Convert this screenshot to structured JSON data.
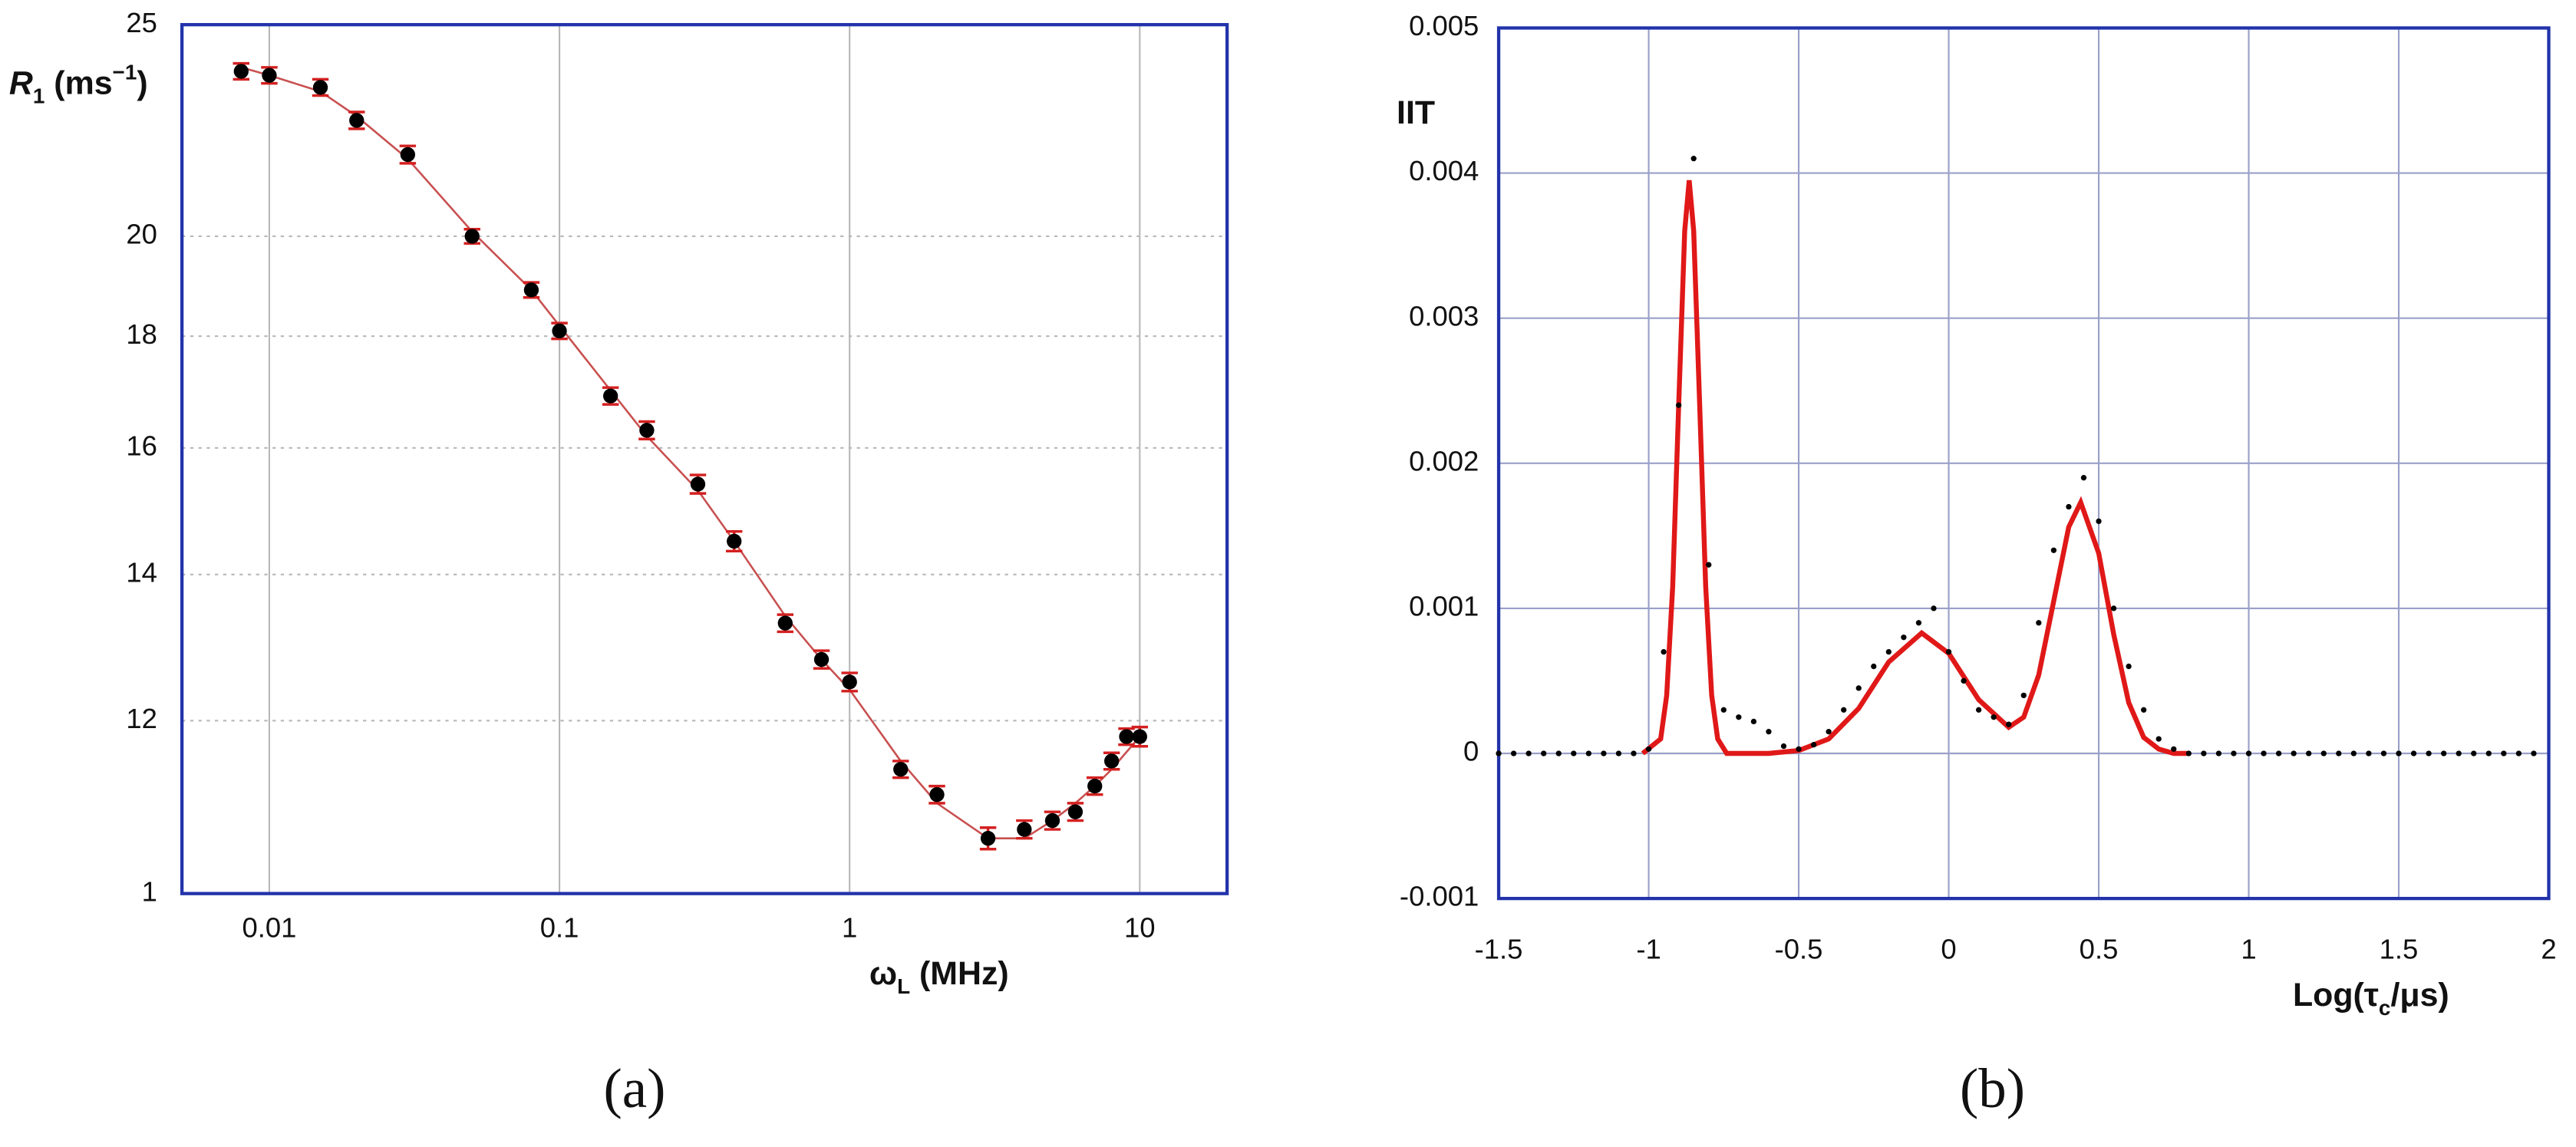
{
  "chart_data": [
    {
      "type": "scatter",
      "x": [
        0.008,
        0.01,
        0.015,
        0.02,
        0.03,
        0.05,
        0.08,
        0.1,
        0.15,
        0.2,
        0.3,
        0.4,
        0.6,
        0.8,
        1,
        1.5,
        2,
        3,
        4,
        5,
        6,
        7,
        8,
        9,
        10
      ],
      "values": [
        23.8,
        23.7,
        23.4,
        22.6,
        21.8,
        20.0,
        18.9,
        18.1,
        16.9,
        16.3,
        15.4,
        14.5,
        13.3,
        12.8,
        12.5,
        11.4,
        11.1,
        10.6,
        10.7,
        10.8,
        10.9,
        11.2,
        11.5,
        11.8,
        11.8
      ],
      "errors": [
        0.2,
        0.2,
        0.2,
        0.2,
        0.2,
        0.15,
        0.15,
        0.15,
        0.15,
        0.15,
        0.15,
        0.15,
        0.12,
        0.12,
        0.12,
        0.1,
        0.1,
        0.12,
        0.1,
        0.1,
        0.1,
        0.1,
        0.1,
        0.1,
        0.12
      ],
      "color": "#000000",
      "error_color": "#d42020",
      "fit": {
        "x": [
          0.008,
          0.01,
          0.015,
          0.02,
          0.03,
          0.05,
          0.08,
          0.1,
          0.15,
          0.2,
          0.3,
          0.4,
          0.6,
          0.8,
          1,
          1.5,
          2,
          3,
          4,
          5,
          6,
          7,
          8,
          10
        ],
        "values": [
          23.9,
          23.7,
          23.3,
          22.7,
          21.7,
          20.1,
          18.9,
          18.2,
          17.0,
          16.2,
          15.3,
          14.5,
          13.4,
          12.8,
          12.4,
          11.5,
          11.0,
          10.6,
          10.6,
          10.8,
          11.0,
          11.2,
          11.4,
          11.8
        ],
        "color": "#c85050"
      },
      "xscale": "log",
      "yscale": "log",
      "xlim": [
        0.005,
        20
      ],
      "ylim": [
        10,
        25
      ],
      "xticks": [
        0.01,
        0.1,
        1,
        10
      ],
      "yticks": [
        {
          "value": 10,
          "label": "1"
        },
        12,
        14,
        16,
        18,
        20,
        25
      ],
      "grid": {
        "x": "solid",
        "y": "dotted",
        "color": "#b8b8b8"
      },
      "frame_color": "#2233aa",
      "xlabel_parts": [
        "ω",
        "L",
        " (MHz)"
      ],
      "ylabel_parts": [
        "R",
        "1",
        " (ms",
        "−1",
        ")"
      ],
      "caption": "(a)"
    },
    {
      "type": "scatter",
      "x": [
        -1.5,
        -1.45,
        -1.4,
        -1.35,
        -1.3,
        -1.25,
        -1.2,
        -1.15,
        -1.1,
        -1.05,
        -1.0,
        -0.95,
        -0.9,
        -0.85,
        -0.8,
        -0.75,
        -0.7,
        -0.65,
        -0.6,
        -0.55,
        -0.5,
        -0.45,
        -0.4,
        -0.35,
        -0.3,
        -0.25,
        -0.2,
        -0.15,
        -0.1,
        -0.05,
        0,
        0.05,
        0.1,
        0.15,
        0.2,
        0.25,
        0.3,
        0.35,
        0.4,
        0.45,
        0.5,
        0.55,
        0.6,
        0.65,
        0.7,
        0.75,
        0.8,
        0.85,
        0.9,
        0.95,
        1.0,
        1.05,
        1.1,
        1.15,
        1.2,
        1.25,
        1.3,
        1.35,
        1.4,
        1.45,
        1.5,
        1.55,
        1.6,
        1.65,
        1.7,
        1.75,
        1.8,
        1.85,
        1.9,
        1.95
      ],
      "values": [
        0,
        0,
        0,
        0,
        0,
        0,
        0,
        0,
        0,
        0,
        3e-05,
        0.0007,
        0.0024,
        0.0041,
        0.0013,
        0.0003,
        0.00025,
        0.00022,
        0.00015,
        5e-05,
        3e-05,
        6e-05,
        0.00015,
        0.0003,
        0.00045,
        0.0006,
        0.0007,
        0.0008,
        0.0009,
        0.001,
        0.0007,
        0.0005,
        0.0003,
        0.00025,
        0.0002,
        0.0004,
        0.0009,
        0.0014,
        0.0017,
        0.0019,
        0.0016,
        0.001,
        0.0006,
        0.0003,
        0.0001,
        3e-05,
        0,
        0,
        0,
        0,
        0,
        0,
        0,
        0,
        0,
        0,
        0,
        0,
        0,
        0,
        0,
        0,
        0,
        0,
        0,
        0,
        0,
        0,
        0,
        0
      ],
      "color": "#000000",
      "fit": {
        "x": [
          -1.02,
          -0.96,
          -0.94,
          -0.92,
          -0.9,
          -0.88,
          -0.865,
          -0.85,
          -0.83,
          -0.81,
          -0.79,
          -0.77,
          -0.74,
          -0.6,
          -0.5,
          -0.4,
          -0.3,
          -0.2,
          -0.09,
          0,
          0.1,
          0.2,
          0.25,
          0.3,
          0.35,
          0.4,
          0.44,
          0.5,
          0.55,
          0.6,
          0.65,
          0.7,
          0.75,
          0.8
        ],
        "values": [
          0,
          0.0001,
          0.0004,
          0.00115,
          0.0024,
          0.0036,
          0.00395,
          0.0036,
          0.0024,
          0.00115,
          0.0004,
          0.0001,
          0,
          0,
          2e-05,
          0.0001,
          0.00031,
          0.00063,
          0.00083,
          0.00069,
          0.00037,
          0.00018,
          0.00025,
          0.00054,
          0.00105,
          0.00156,
          0.00173,
          0.00138,
          0.00082,
          0.00035,
          0.00011,
          3e-05,
          0,
          0
        ],
        "color": "#e01818"
      },
      "xscale": "linear",
      "yscale": "linear",
      "xlim": [
        -1.5,
        2
      ],
      "ylim": [
        -0.001,
        0.005
      ],
      "xticks": [
        -1.5,
        -1,
        -0.5,
        0,
        0.5,
        1,
        1.5,
        2
      ],
      "yticks": [
        -0.001,
        0,
        0.001,
        0.002,
        0.003,
        0.004,
        0.005
      ],
      "grid": {
        "x": "solid",
        "y": "solid",
        "color": "#9aa0c8"
      },
      "frame_color": "#2233aa",
      "xlabel_parts": [
        "Log(τ",
        "c",
        "/μs)"
      ],
      "ylabel_parts": [
        "IIT"
      ],
      "caption": "(b)"
    }
  ]
}
